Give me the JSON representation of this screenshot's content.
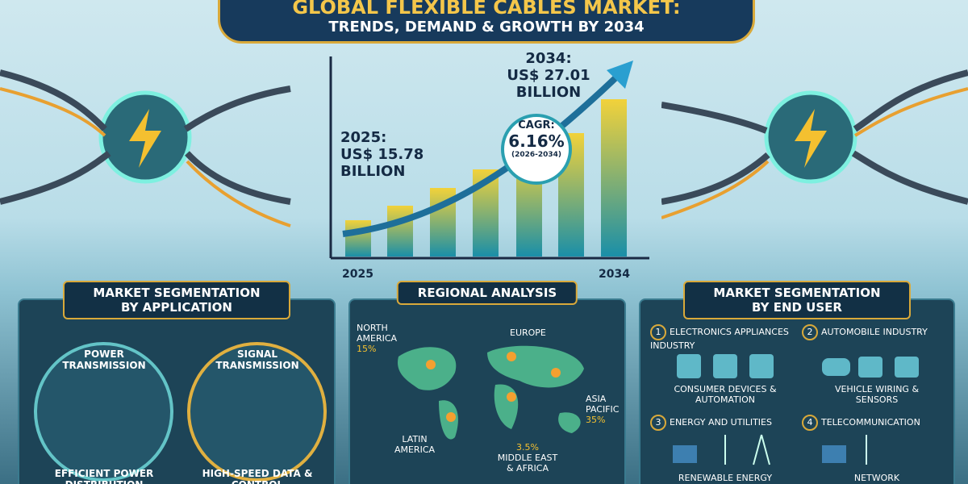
{
  "header": {
    "title": "GLOBAL FLEXIBLE CABLES MARKET:",
    "subtitle": "TRENDS, DEMAND & GROWTH BY 2034"
  },
  "growth": {
    "end_label": "2034:",
    "end_value": "US$ 27.01",
    "end_unit": "BILLION",
    "start_label": "2025:",
    "start_value": "US$ 15.78",
    "start_unit": "BILLION",
    "cagr_label": "CAGR:",
    "cagr_value": "6.16%",
    "cagr_period": "(2026-2034)",
    "x_start": "2025",
    "x_end": "2034"
  },
  "application": {
    "title": "MARKET SEGMENTATION BY APPLICATION",
    "items": [
      {
        "name": "POWER TRANSMISSION",
        "desc": "EFFICIENT POWER DISTRIBUTION"
      },
      {
        "name": "SIGNAL TRANSMISSION",
        "desc": "HIGH-SPEED DATA & CONTROL"
      }
    ]
  },
  "regional": {
    "title": "REGIONAL ANALYSIS",
    "regions": [
      {
        "name": "NORTH AMERICA",
        "share": "15%"
      },
      {
        "name": "EUROPE"
      },
      {
        "name": "ASIA PACIFIC",
        "share": "35%"
      },
      {
        "name": "LATIN AMERICA"
      },
      {
        "name": "MIDDLE EAST & AFRICA",
        "share": "3.5%"
      }
    ]
  },
  "end_user": {
    "title": "MARKET SEGMENTATION BY END USER",
    "items": [
      {
        "num": "1",
        "name": "ELECTRONICS APPLIANCES INDUSTRY",
        "desc": "CONSUMER DEVICES & AUTOMATION"
      },
      {
        "num": "2",
        "name": "AUTOMOBILE INDUSTRY",
        "desc": "VEHICLE WIRING & SENSORS"
      },
      {
        "num": "3",
        "name": "ENERGY AND UTILITIES",
        "desc": "RENEWABLE ENERGY"
      },
      {
        "num": "4",
        "name": "TELECOMMUNICATION",
        "desc": "NETWORK"
      }
    ]
  }
}
